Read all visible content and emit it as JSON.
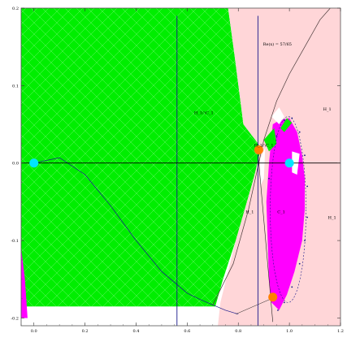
{
  "chart_data": {
    "type": "region",
    "title": "",
    "xlabel": "",
    "ylabel": "",
    "xlim": [
      -0.05,
      1.2
    ],
    "ylim": [
      -0.21,
      0.2
    ],
    "x_ticks": [
      0.0,
      0.2,
      0.4,
      0.6,
      0.8,
      1.0,
      1.2
    ],
    "x_tick_labels": [
      "0.0",
      "0.2",
      "0.4",
      "0.6",
      "0.8",
      "1.0",
      "1.2"
    ],
    "y_ticks": [
      -0.2,
      -0.1,
      0.0,
      0.1,
      0.2
    ],
    "y_tick_labels": [
      "-0.2",
      "-0.1",
      "0.0",
      "0.1",
      "0.2"
    ],
    "grid": false,
    "colors": {
      "green": "#00ee00",
      "pink": "#ffd6d8",
      "magenta": "#ff00ff",
      "cyan": "#00e5ff",
      "orange": "#ff8000",
      "navy": "#1a1a8c",
      "dark_curve": "#4a3a3a",
      "axes": "#000000",
      "white": "#ffffff"
    },
    "regions": [
      {
        "label": "H_1∩C_1",
        "color": "green",
        "at": [
          0.65,
          0.063
        ],
        "boundary": [
          [
            -0.05,
            0.2
          ],
          [
            0.76,
            0.2
          ],
          [
            0.785,
            0.14
          ],
          [
            0.82,
            0.05
          ],
          [
            0.89,
            0.02
          ],
          [
            0.86,
            -0.02
          ],
          [
            0.79,
            -0.1
          ],
          [
            0.74,
            -0.15
          ],
          [
            0.71,
            -0.185
          ],
          [
            -0.05,
            -0.185
          ]
        ]
      },
      {
        "label": "H_1",
        "color": "pink",
        "at": [
          1.15,
          0.07
        ],
        "boundary": [
          [
            0.76,
            0.2
          ],
          [
            1.2,
            0.2
          ],
          [
            1.2,
            -0.21
          ],
          [
            0.72,
            -0.21
          ],
          [
            0.73,
            -0.18
          ],
          [
            0.79,
            -0.1
          ],
          [
            0.86,
            -0.02
          ],
          [
            0.89,
            0.02
          ],
          [
            0.82,
            0.05
          ],
          [
            0.785,
            0.14
          ]
        ]
      }
    ],
    "region_labels": [
      {
        "text": "H_1∩C_1",
        "at": [
          0.665,
          0.063
        ]
      },
      {
        "text": "H_1",
        "at": [
          1.148,
          0.068
        ]
      },
      {
        "text": "H_1",
        "at": [
          0.845,
          -0.065
        ]
      },
      {
        "text": "H_1",
        "at": [
          1.167,
          -0.072
        ]
      },
      {
        "text": "H_1∩C_1",
        "at": [
          0.9,
          0.021
        ]
      },
      {
        "text": "C_1",
        "at": [
          0.968,
          -0.065
        ]
      }
    ],
    "annotation": {
      "text": "Re(x) = 57/65",
      "at": [
        0.953,
        0.152
      ]
    },
    "vertical_lines": [
      0.56,
      0.8769
    ],
    "points": [
      {
        "x": 0.0,
        "y": 0.0,
        "color": "cyan"
      },
      {
        "x": 1.0,
        "y": 0.0,
        "color": "cyan"
      },
      {
        "x": 0.88,
        "y": 0.017,
        "color": "orange"
      },
      {
        "x": 0.935,
        "y": -0.173,
        "color": "orange"
      }
    ],
    "curves": [
      {
        "name": "cardioid",
        "color": "navy",
        "points": [
          [
            0.0,
            0.0
          ],
          [
            0.1,
            0.007
          ],
          [
            0.2,
            -0.015
          ],
          [
            0.3,
            -0.055
          ],
          [
            0.4,
            -0.1
          ],
          [
            0.5,
            -0.14
          ],
          [
            0.6,
            -0.168
          ],
          [
            0.65,
            -0.176
          ],
          [
            0.7,
            -0.183
          ],
          [
            0.75,
            -0.19
          ],
          [
            0.8,
            -0.195
          ]
        ]
      },
      {
        "name": "ray",
        "color": "dark_curve",
        "points": [
          [
            0.7,
            -0.183
          ],
          [
            0.78,
            -0.13
          ],
          [
            0.84,
            -0.06
          ],
          [
            0.9,
            0.03
          ],
          [
            0.95,
            0.08
          ],
          [
            1.0,
            0.115
          ],
          [
            1.06,
            0.15
          ],
          [
            1.12,
            0.185
          ],
          [
            1.16,
            0.2
          ]
        ]
      }
    ],
    "magenta_regions": [
      [
        [
          0.92,
          0.0
        ],
        [
          0.935,
          0.05
        ],
        [
          0.96,
          0.055
        ],
        [
          1.0,
          0.058
        ],
        [
          1.03,
          0.04
        ],
        [
          1.05,
          0.01
        ],
        [
          1.06,
          -0.02
        ],
        [
          1.06,
          -0.06
        ],
        [
          1.05,
          -0.1
        ],
        [
          1.02,
          -0.14
        ],
        [
          0.99,
          -0.17
        ],
        [
          0.96,
          -0.19
        ],
        [
          0.93,
          -0.18
        ],
        [
          0.92,
          -0.15
        ],
        [
          0.915,
          -0.1
        ],
        [
          0.91,
          -0.05
        ]
      ],
      [
        [
          -0.05,
          -0.11
        ],
        [
          -0.035,
          -0.15
        ],
        [
          -0.025,
          -0.2
        ],
        [
          -0.05,
          -0.2
        ]
      ]
    ],
    "dotted_curve": [
      [
        0.92,
        -0.02
      ],
      [
        0.95,
        0.035
      ],
      [
        0.98,
        0.055
      ],
      [
        1.01,
        0.058
      ],
      [
        1.04,
        0.04
      ],
      [
        1.06,
        0.01
      ],
      [
        1.07,
        -0.03
      ],
      [
        1.07,
        -0.07
      ],
      [
        1.06,
        -0.1
      ],
      [
        1.04,
        -0.13
      ],
      [
        1.01,
        -0.16
      ],
      [
        0.98,
        -0.18
      ],
      [
        0.955,
        -0.19
      ]
    ],
    "dashed_ellipse": {
      "cx": 0.995,
      "cy": -0.06,
      "rx": 0.07,
      "ry": 0.12
    }
  }
}
